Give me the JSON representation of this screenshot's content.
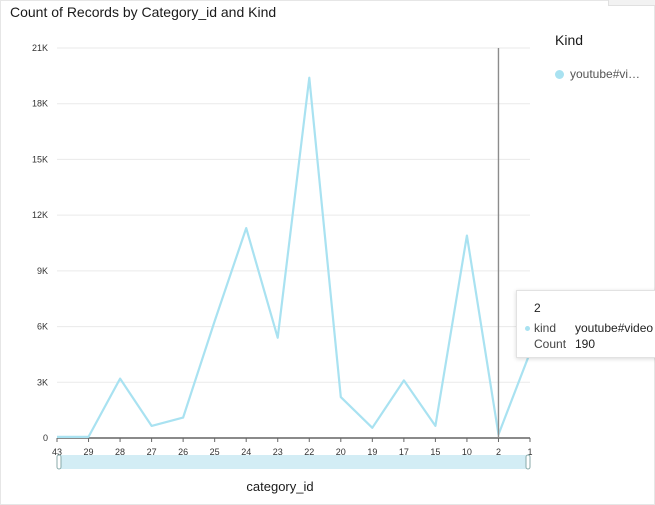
{
  "colors": {
    "series": "#a9e2f1",
    "crosshair": "#8c8c8c",
    "grid": "#eaeaea",
    "scroll_fill": "#d3edf5"
  },
  "title": "Count of Records by Category_id and Kind",
  "legend": {
    "title": "Kind",
    "items": [
      {
        "label": "youtube#vi…"
      }
    ]
  },
  "tooltip": {
    "title": "2",
    "rows": [
      {
        "key": "kind",
        "value": "youtube#video"
      },
      {
        "key": "Count",
        "value": "190"
      }
    ]
  },
  "chart_data": {
    "type": "line",
    "title": "Count of Records by Category_id and Kind",
    "xlabel": "category_id",
    "ylabel": "",
    "categories": [
      "43",
      "29",
      "28",
      "27",
      "26",
      "25",
      "24",
      "23",
      "22",
      "20",
      "19",
      "17",
      "15",
      "10",
      "2",
      "1"
    ],
    "series": [
      {
        "name": "youtube#video",
        "values": [
          57,
          57,
          3200,
          650,
          1100,
          6300,
          11300,
          5400,
          19400,
          2200,
          550,
          3100,
          650,
          10900,
          190,
          4600
        ]
      }
    ],
    "ylim": [
      0,
      21000
    ],
    "yticks": [
      0,
      3000,
      6000,
      9000,
      12000,
      15000,
      18000,
      21000
    ],
    "ytick_labels": [
      "0",
      "3K",
      "6K",
      "9K",
      "12K",
      "15K",
      "18K",
      "21K"
    ],
    "grid": true,
    "legend": "top-right",
    "highlighted_category": "2"
  }
}
